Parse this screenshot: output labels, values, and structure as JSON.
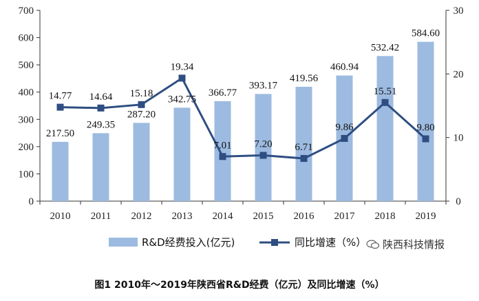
{
  "chart_data": {
    "type": "bar",
    "categories": [
      "2010",
      "2011",
      "2012",
      "2013",
      "2014",
      "2015",
      "2016",
      "2017",
      "2018",
      "2019"
    ],
    "series": [
      {
        "name": "R&D经费投入(亿元)",
        "type": "bar",
        "axis": "left",
        "color": "#9dbbe0",
        "values": [
          217.5,
          249.35,
          287.2,
          342.75,
          366.77,
          393.17,
          419.56,
          460.94,
          532.42,
          584.6
        ],
        "labels": [
          "217.50",
          "249.35",
          "287.20",
          "342.75",
          "366.77",
          "393.17",
          "419.56",
          "460.94",
          "532.42",
          "584.60"
        ]
      },
      {
        "name": "同比增速（%）",
        "type": "line",
        "axis": "right",
        "color": "#2e4e82",
        "values": [
          14.77,
          14.64,
          15.18,
          19.34,
          7.01,
          7.2,
          6.71,
          9.86,
          15.51,
          9.8
        ],
        "labels": [
          "14.77",
          "14.64",
          "15.18",
          "19.34",
          "7.01",
          "7.20",
          "6.71",
          "9.86",
          "15.51",
          "9.80"
        ]
      }
    ],
    "y_left": {
      "min": 0,
      "max": 700,
      "ticks": [
        "0",
        "100",
        "200",
        "300",
        "400",
        "500",
        "600",
        "700"
      ]
    },
    "y_right": {
      "min": 0,
      "max": 30,
      "ticks": [
        "0",
        "10",
        "20",
        "30"
      ]
    },
    "legend_position": "bottom",
    "grid": false
  },
  "watermark": "陕西科技情报",
  "caption": "图1 2010年～2019年陕西省R&D经费（亿元）及同比增速（%）"
}
